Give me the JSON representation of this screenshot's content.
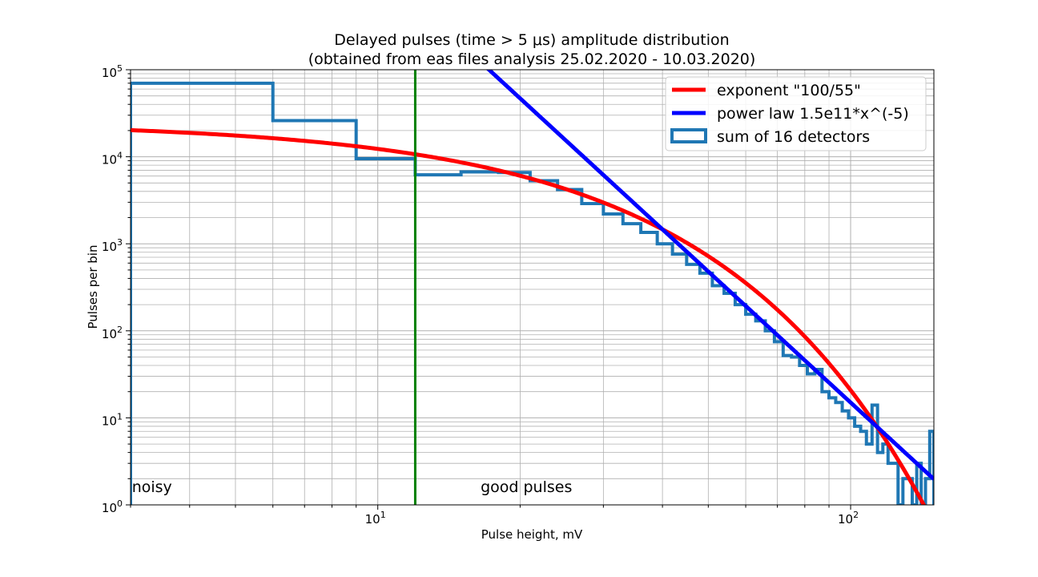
{
  "chart_data": {
    "type": "line",
    "title_line1": "Delayed pulses (time > 5 μs) amplitude distribution",
    "title_line2": "(obtained from eas files analysis 25.02.2020 - 10.03.2020)",
    "xlabel": "Pulse height, mV",
    "ylabel": "Pulses per bin",
    "xscale": "log",
    "yscale": "log",
    "xlim": [
      3.0,
      150.0
    ],
    "ylim": [
      1,
      100000
    ],
    "grid": true,
    "legend_position": "top-right",
    "x_ticks": [
      {
        "value": 10,
        "base": "10",
        "exp": "1"
      },
      {
        "value": 100,
        "base": "10",
        "exp": "2"
      }
    ],
    "y_ticks": [
      {
        "value": 1,
        "base": "10",
        "exp": "0"
      },
      {
        "value": 10,
        "base": "10",
        "exp": "1"
      },
      {
        "value": 100,
        "base": "10",
        "exp": "2"
      },
      {
        "value": 1000,
        "base": "10",
        "exp": "3"
      },
      {
        "value": 10000,
        "base": "10",
        "exp": "4"
      },
      {
        "value": 100000,
        "base": "10",
        "exp": "5"
      }
    ],
    "vertical_line": {
      "x": 12.0,
      "color": "#008000"
    },
    "annotations": [
      {
        "text": "noisy",
        "x": 3.02,
        "y": 1.6
      },
      {
        "text": "good pulses",
        "x": 16.5,
        "y": 1.6
      }
    ],
    "series": [
      {
        "name": "exponent \"100/55\"",
        "kind": "curve",
        "formula": "A*exp(-x/B)",
        "A": 25000,
        "B": 14.1,
        "color": "#ff0000"
      },
      {
        "name": "power law 1.5e11*x^(-5)",
        "kind": "curve",
        "formula": "A*x^(-k)",
        "A": 150000000000,
        "k": 5,
        "color": "#0000ff"
      },
      {
        "name": "sum of 16 detectors",
        "kind": "step_histogram",
        "color": "#1f77b4",
        "edges": [
          3.0,
          6.0,
          9.0,
          12.0,
          15.0,
          18.0,
          21.0,
          24.0,
          27.0,
          30.0,
          33.0,
          36.0,
          39.0,
          42.0,
          45.0,
          48.0,
          51.0,
          54.0,
          57.0,
          60.0,
          63.0,
          66.0,
          69.0,
          72.0,
          75.0,
          78.0,
          81.0,
          84.0,
          87.0,
          90.0,
          93.0,
          96.0,
          99.0,
          102.0,
          105.0,
          108.0,
          111.0,
          114.0,
          117.0,
          120.0,
          123.0,
          126.0,
          129.0,
          132.0,
          135.0,
          138.0,
          141.0,
          144.0,
          147.0,
          150.0
        ],
        "counts": [
          70000,
          26000,
          9500,
          6200,
          6700,
          6600,
          5300,
          4200,
          2900,
          2200,
          1700,
          1350,
          1000,
          760,
          580,
          460,
          330,
          270,
          200,
          155,
          130,
          100,
          75,
          52,
          50,
          40,
          32,
          36,
          20,
          17,
          15,
          12,
          10,
          8,
          7,
          5,
          14,
          4,
          5,
          3,
          3,
          1,
          2,
          2,
          1,
          3,
          1,
          2,
          7
        ]
      }
    ]
  }
}
